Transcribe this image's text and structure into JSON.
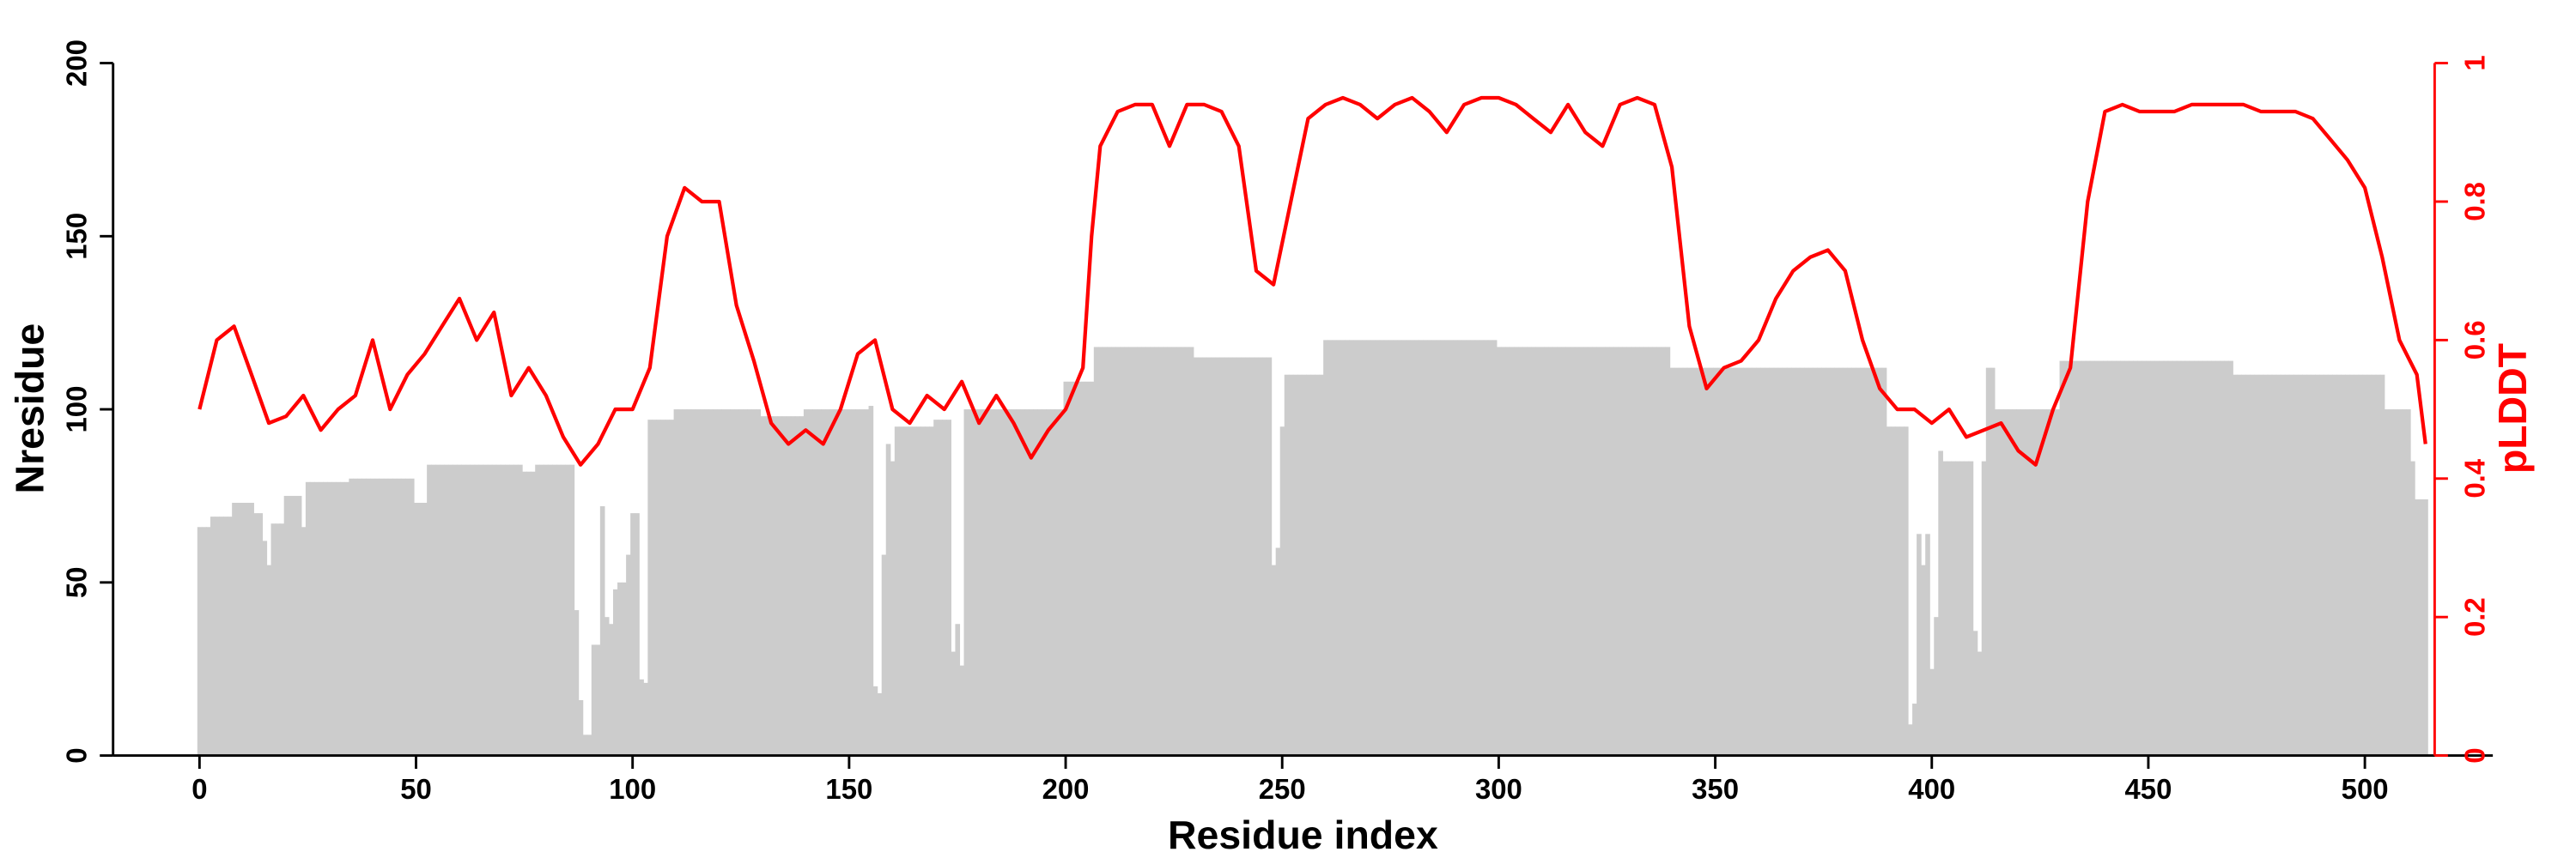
{
  "chart_data": {
    "type": "bar+line",
    "xlabel": "Residue index",
    "ylabel": "Nresidue",
    "ylabel_right": "pLDDT",
    "xlim": [
      -20,
      535
    ],
    "ylim": [
      0,
      200
    ],
    "ylim_right": [
      0,
      1
    ],
    "x_ticks": [
      "0",
      "50",
      "100",
      "150",
      "200",
      "250",
      "300",
      "350",
      "400",
      "450",
      "500"
    ],
    "y_ticks": [
      "0",
      "50",
      "100",
      "150",
      "200"
    ],
    "y_ticks_right": [
      "0",
      "0.2",
      "0.4",
      "0.6",
      "0.8",
      "1"
    ],
    "grid": false,
    "colors": {
      "bars": "#cccccc",
      "line": "#ff0000",
      "axis": "#000000",
      "right_axis": "#ff0000"
    },
    "bar_series": {
      "name": "Nresidue",
      "runs": [
        [
          0,
          3,
          66
        ],
        [
          3,
          8,
          69
        ],
        [
          8,
          13,
          73
        ],
        [
          13,
          15,
          70
        ],
        [
          15,
          16,
          62
        ],
        [
          16,
          17,
          55
        ],
        [
          17,
          20,
          67
        ],
        [
          20,
          24,
          75
        ],
        [
          24,
          25,
          66
        ],
        [
          25,
          35,
          79
        ],
        [
          35,
          50,
          80
        ],
        [
          50,
          53,
          73
        ],
        [
          53,
          58,
          84
        ],
        [
          58,
          75,
          84
        ],
        [
          75,
          78,
          82
        ],
        [
          78,
          87,
          84
        ],
        [
          87,
          88,
          42
        ],
        [
          88,
          89,
          16
        ],
        [
          89,
          91,
          6
        ],
        [
          91,
          93,
          32
        ],
        [
          93,
          94,
          72
        ],
        [
          94,
          95,
          40
        ],
        [
          95,
          96,
          38
        ],
        [
          96,
          97,
          48
        ],
        [
          97,
          99,
          50
        ],
        [
          99,
          100,
          58
        ],
        [
          100,
          102,
          70
        ],
        [
          102,
          103,
          22
        ],
        [
          103,
          104,
          21
        ],
        [
          104,
          110,
          97
        ],
        [
          110,
          130,
          100
        ],
        [
          130,
          140,
          98
        ],
        [
          140,
          155,
          100
        ],
        [
          155,
          156,
          101
        ],
        [
          156,
          157,
          20
        ],
        [
          157,
          158,
          18
        ],
        [
          158,
          159,
          58
        ],
        [
          159,
          160,
          90
        ],
        [
          160,
          161,
          85
        ],
        [
          161,
          170,
          95
        ],
        [
          170,
          174,
          97
        ],
        [
          174,
          175,
          30
        ],
        [
          175,
          176,
          38
        ],
        [
          176,
          177,
          26
        ],
        [
          177,
          200,
          100
        ],
        [
          200,
          207,
          108
        ],
        [
          207,
          230,
          118
        ],
        [
          230,
          248,
          115
        ],
        [
          248,
          249,
          55
        ],
        [
          249,
          250,
          60
        ],
        [
          250,
          251,
          95
        ],
        [
          251,
          260,
          110
        ],
        [
          260,
          300,
          120
        ],
        [
          300,
          340,
          118
        ],
        [
          340,
          350,
          112
        ],
        [
          350,
          390,
          112
        ],
        [
          390,
          395,
          95
        ],
        [
          395,
          396,
          9
        ],
        [
          396,
          397,
          15
        ],
        [
          397,
          398,
          64
        ],
        [
          398,
          399,
          55
        ],
        [
          399,
          400,
          64
        ],
        [
          400,
          401,
          25
        ],
        [
          401,
          402,
          40
        ],
        [
          402,
          403,
          88
        ],
        [
          403,
          410,
          85
        ],
        [
          410,
          411,
          36
        ],
        [
          411,
          412,
          30
        ],
        [
          412,
          413,
          85
        ],
        [
          413,
          415,
          112
        ],
        [
          415,
          430,
          100
        ],
        [
          430,
          470,
          114
        ],
        [
          470,
          505,
          110
        ],
        [
          505,
          511,
          100
        ],
        [
          511,
          512,
          85
        ],
        [
          512,
          515,
          74
        ]
      ]
    },
    "line_series": {
      "name": "pLDDT",
      "x": [
        0,
        4,
        8,
        12,
        16,
        20,
        24,
        28,
        32,
        36,
        40,
        44,
        48,
        52,
        56,
        60,
        64,
        68,
        72,
        76,
        80,
        84,
        88,
        92,
        96,
        100,
        104,
        108,
        112,
        116,
        120,
        124,
        128,
        132,
        136,
        140,
        144,
        148,
        152,
        156,
        160,
        164,
        168,
        172,
        176,
        180,
        184,
        188,
        192,
        196,
        200,
        204,
        206,
        208,
        212,
        216,
        220,
        224,
        228,
        232,
        236,
        240,
        244,
        248,
        252,
        256,
        260,
        264,
        268,
        272,
        276,
        280,
        284,
        288,
        292,
        296,
        300,
        304,
        308,
        312,
        316,
        320,
        324,
        328,
        332,
        336,
        340,
        344,
        348,
        352,
        356,
        360,
        364,
        368,
        372,
        376,
        380,
        384,
        388,
        392,
        396,
        400,
        404,
        408,
        412,
        416,
        420,
        424,
        428,
        432,
        436,
        440,
        444,
        448,
        452,
        456,
        460,
        464,
        468,
        472,
        476,
        480,
        484,
        488,
        492,
        496,
        500,
        504,
        508,
        512,
        514
      ],
      "y": [
        0.5,
        0.6,
        0.62,
        0.55,
        0.48,
        0.49,
        0.52,
        0.47,
        0.5,
        0.52,
        0.6,
        0.5,
        0.55,
        0.58,
        0.62,
        0.66,
        0.6,
        0.64,
        0.52,
        0.56,
        0.52,
        0.46,
        0.42,
        0.45,
        0.5,
        0.5,
        0.56,
        0.75,
        0.82,
        0.8,
        0.8,
        0.65,
        0.57,
        0.48,
        0.45,
        0.47,
        0.45,
        0.5,
        0.58,
        0.6,
        0.5,
        0.48,
        0.52,
        0.5,
        0.54,
        0.48,
        0.52,
        0.48,
        0.43,
        0.47,
        0.5,
        0.56,
        0.75,
        0.88,
        0.93,
        0.94,
        0.94,
        0.88,
        0.94,
        0.94,
        0.93,
        0.88,
        0.7,
        0.68,
        0.8,
        0.92,
        0.94,
        0.95,
        0.94,
        0.92,
        0.94,
        0.95,
        0.93,
        0.9,
        0.94,
        0.95,
        0.95,
        0.94,
        0.92,
        0.9,
        0.94,
        0.9,
        0.88,
        0.94,
        0.95,
        0.94,
        0.85,
        0.62,
        0.53,
        0.56,
        0.57,
        0.6,
        0.66,
        0.7,
        0.72,
        0.73,
        0.7,
        0.6,
        0.53,
        0.5,
        0.5,
        0.48,
        0.5,
        0.46,
        0.47,
        0.48,
        0.44,
        0.42,
        0.5,
        0.56,
        0.8,
        0.93,
        0.94,
        0.93,
        0.93,
        0.93,
        0.94,
        0.94,
        0.94,
        0.94,
        0.93,
        0.93,
        0.93,
        0.92,
        0.89,
        0.86,
        0.82,
        0.72,
        0.6,
        0.55,
        0.45
      ]
    }
  }
}
